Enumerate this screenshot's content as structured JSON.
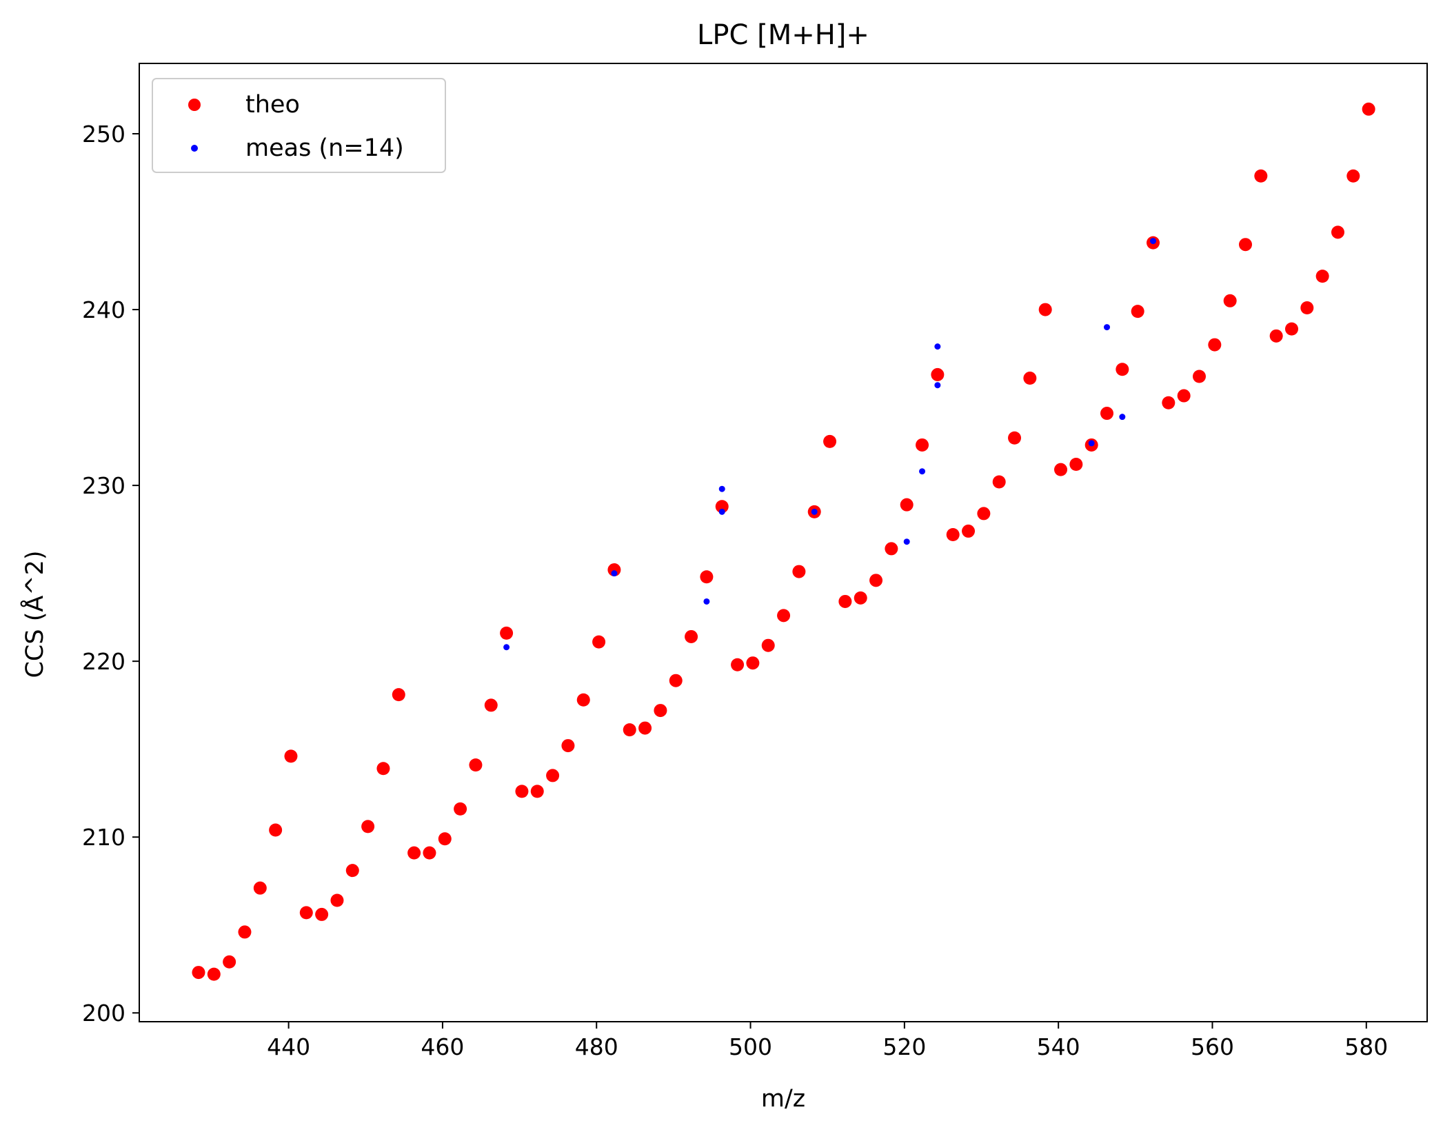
{
  "chart_data": {
    "type": "scatter",
    "title": "LPC [M+H]+",
    "xlabel": "m/z",
    "ylabel": "CCS (Å^2)",
    "xlim": [
      420.6,
      587.9
    ],
    "ylim": [
      199.5,
      254.0
    ],
    "x_ticks": [
      440,
      460,
      480,
      500,
      520,
      540,
      560,
      580
    ],
    "y_ticks": [
      200,
      210,
      220,
      230,
      240,
      250
    ],
    "grid": false,
    "legend_position": "top-left",
    "series": [
      {
        "name": "theo",
        "color": "#ff0000",
        "marker_size": "large",
        "points": [
          [
            428.3,
            202.3
          ],
          [
            430.3,
            202.2
          ],
          [
            432.3,
            202.9
          ],
          [
            434.3,
            204.6
          ],
          [
            436.3,
            207.1
          ],
          [
            438.3,
            210.4
          ],
          [
            440.3,
            214.6
          ],
          [
            442.3,
            205.7
          ],
          [
            444.3,
            205.6
          ],
          [
            446.3,
            206.4
          ],
          [
            448.3,
            208.1
          ],
          [
            450.3,
            210.6
          ],
          [
            452.3,
            213.9
          ],
          [
            454.3,
            218.1
          ],
          [
            456.3,
            209.1
          ],
          [
            458.3,
            209.1
          ],
          [
            460.3,
            209.9
          ],
          [
            462.3,
            211.6
          ],
          [
            464.3,
            214.1
          ],
          [
            466.3,
            217.5
          ],
          [
            468.3,
            221.6
          ],
          [
            470.3,
            212.6
          ],
          [
            472.3,
            212.6
          ],
          [
            474.3,
            213.5
          ],
          [
            476.3,
            215.2
          ],
          [
            478.3,
            217.8
          ],
          [
            480.3,
            221.1
          ],
          [
            482.3,
            225.2
          ],
          [
            484.3,
            216.1
          ],
          [
            486.3,
            216.2
          ],
          [
            488.3,
            217.2
          ],
          [
            490.3,
            218.9
          ],
          [
            492.3,
            221.4
          ],
          [
            494.3,
            224.8
          ],
          [
            496.3,
            228.8
          ],
          [
            498.3,
            219.8
          ],
          [
            500.3,
            219.9
          ],
          [
            502.3,
            220.9
          ],
          [
            504.3,
            222.6
          ],
          [
            506.3,
            225.1
          ],
          [
            508.3,
            228.5
          ],
          [
            510.3,
            232.5
          ],
          [
            512.3,
            223.4
          ],
          [
            514.3,
            223.6
          ],
          [
            516.3,
            224.6
          ],
          [
            518.3,
            226.4
          ],
          [
            520.3,
            228.9
          ],
          [
            522.3,
            232.3
          ],
          [
            524.3,
            236.3
          ],
          [
            526.3,
            227.2
          ],
          [
            528.3,
            227.4
          ],
          [
            530.3,
            228.4
          ],
          [
            532.3,
            230.2
          ],
          [
            534.3,
            232.7
          ],
          [
            536.3,
            236.1
          ],
          [
            538.3,
            240.0
          ],
          [
            540.3,
            230.9
          ],
          [
            542.3,
            231.2
          ],
          [
            544.3,
            232.3
          ],
          [
            546.3,
            234.1
          ],
          [
            548.3,
            236.6
          ],
          [
            550.3,
            239.9
          ],
          [
            552.3,
            243.8
          ],
          [
            554.3,
            234.7
          ],
          [
            556.3,
            235.1
          ],
          [
            558.3,
            236.2
          ],
          [
            560.3,
            238.0
          ],
          [
            562.3,
            240.5
          ],
          [
            564.3,
            243.7
          ],
          [
            566.3,
            247.6
          ],
          [
            568.3,
            238.5
          ],
          [
            570.3,
            238.9
          ],
          [
            572.3,
            240.1
          ],
          [
            574.3,
            241.9
          ],
          [
            576.3,
            244.4
          ],
          [
            578.3,
            247.6
          ],
          [
            580.3,
            251.4
          ]
        ]
      },
      {
        "name": "meas (n=14)",
        "color": "#0000ff",
        "marker_size": "small",
        "points": [
          [
            468.3,
            220.8
          ],
          [
            482.3,
            225.0
          ],
          [
            494.3,
            223.4
          ],
          [
            496.3,
            229.8
          ],
          [
            496.3,
            228.5
          ],
          [
            508.3,
            228.5
          ],
          [
            520.3,
            226.8
          ],
          [
            522.3,
            230.8
          ],
          [
            524.3,
            237.9
          ],
          [
            524.3,
            235.7
          ],
          [
            544.3,
            232.4
          ],
          [
            546.3,
            239.0
          ],
          [
            548.3,
            233.9
          ],
          [
            552.3,
            243.9
          ]
        ]
      }
    ]
  }
}
